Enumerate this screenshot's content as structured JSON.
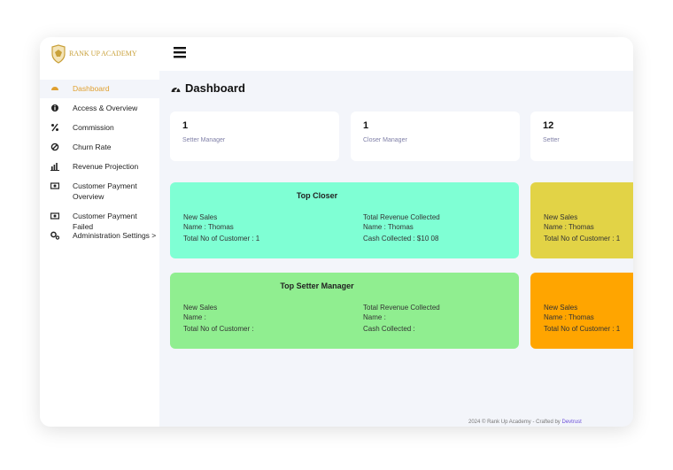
{
  "sidebar": {
    "logo": "RANK UP ACADEMY",
    "menu": [
      "Dashboard",
      "Access & Overview",
      "Commission",
      "Churn Rate",
      "Revenue Projection",
      "Customer Payment Overview",
      "Customer Payment Failed",
      "Administration Settings >"
    ]
  },
  "page": {
    "title": "Dashboard"
  },
  "stats": [
    {
      "value": 1,
      "label": "Setter Manager"
    },
    {
      "value": 1,
      "label": "Closer Manager"
    },
    {
      "value": 12,
      "label": "Setter"
    }
  ],
  "cards": [
    {
      "title": "Top Closer",
      "left": [
        "New Sales",
        "Name : Thomas",
        "Total No of Customer : 1"
      ],
      "right": [
        "Total Revenue Collected",
        "Name : Thomas",
        "Cash Collected : $10 08"
      ]
    },
    {
      "left": [
        "New Sales",
        "Name : Thomas",
        "Total No of Customer : 1"
      ]
    },
    {
      "title": "Top Setter Manager",
      "left": [
        "New Sales",
        "Name :",
        "Total No of Customer :"
      ],
      "right": [
        "Total Revenue Collected",
        "Name :",
        "Cash Collected :"
      ]
    },
    {
      "left": [
        "New Sales",
        "Name : Thomas",
        "Total No of Customer : 1"
      ]
    }
  ],
  "footer": {
    "text": "2024 © Rank Up Academy - Crafted by",
    "link": "Devtrust"
  }
}
